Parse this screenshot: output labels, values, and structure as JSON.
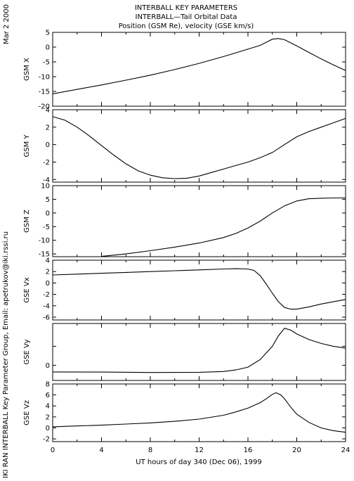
{
  "header": {
    "date": "Mar  2 2000",
    "title_lines": [
      "INTERBALL KEY PARAMETERS",
      "INTERBALL—Tail Orbital Data",
      "Position (GSM Re), velocity (GSE km/s)"
    ],
    "side_label": "IKI RAN INTERBALL Key Parameter Group, Email: apetrukov@iki.rssi.ru"
  },
  "chart_data": [
    {
      "type": "line",
      "ylabel": "GSM X",
      "xlim": [
        0,
        24
      ],
      "ylim": [
        -20,
        5
      ],
      "yticks": [
        5,
        0,
        -5,
        -10,
        -15,
        -20
      ],
      "x": [
        0,
        2,
        4,
        6,
        8,
        10,
        12,
        14,
        16,
        17,
        18,
        18.5,
        19,
        20,
        21,
        22,
        23,
        24
      ],
      "y": [
        -15.8,
        -14.3,
        -12.8,
        -11.2,
        -9.5,
        -7.6,
        -5.5,
        -3.2,
        -0.7,
        0.6,
        2.7,
        2.9,
        2.5,
        0.4,
        -1.8,
        -4.0,
        -6.0,
        -7.9
      ]
    },
    {
      "type": "line",
      "ylabel": "GSM Y",
      "xlim": [
        0,
        24
      ],
      "ylim": [
        -4.3,
        4
      ],
      "yticks": [
        4,
        2,
        0,
        -2,
        -4
      ],
      "x": [
        0,
        1,
        2,
        3,
        4,
        5,
        6,
        7,
        8,
        9,
        10,
        11,
        12,
        13,
        14,
        15,
        16,
        17,
        18,
        19,
        20,
        21,
        22,
        23,
        24
      ],
      "y": [
        3.2,
        2.8,
        2.0,
        1.0,
        -0.1,
        -1.2,
        -2.2,
        -3.0,
        -3.5,
        -3.8,
        -3.9,
        -3.85,
        -3.6,
        -3.2,
        -2.8,
        -2.4,
        -2.0,
        -1.5,
        -0.9,
        0.0,
        0.9,
        1.5,
        2.0,
        2.5,
        3.0
      ]
    },
    {
      "type": "line",
      "ylabel": "GSM Z",
      "xlim": [
        0,
        24
      ],
      "ylim": [
        -16,
        10
      ],
      "yticks": [
        10,
        5,
        0,
        -5,
        -10,
        -15
      ],
      "x": [
        4,
        6,
        8,
        10,
        12,
        14,
        15,
        16,
        17,
        18,
        19,
        20,
        21,
        22,
        23,
        24
      ],
      "y": [
        -15.9,
        -15.0,
        -13.8,
        -12.5,
        -11.0,
        -9.0,
        -7.5,
        -5.5,
        -3.0,
        0.0,
        2.6,
        4.4,
        5.2,
        5.4,
        5.5,
        5.5
      ]
    },
    {
      "type": "line",
      "ylabel": "GSE Vx",
      "xlim": [
        0,
        24
      ],
      "ylim": [
        -6.5,
        4
      ],
      "yticks": [
        4,
        2,
        0,
        -2,
        -4,
        -6
      ],
      "x": [
        0,
        2,
        4,
        6,
        8,
        10,
        12,
        14,
        15,
        16,
        16.5,
        17,
        17.5,
        18,
        18.5,
        19,
        19.5,
        20,
        21,
        22,
        23,
        24
      ],
      "y": [
        1.4,
        1.55,
        1.7,
        1.85,
        2.0,
        2.15,
        2.3,
        2.45,
        2.5,
        2.45,
        2.2,
        1.3,
        -0.2,
        -1.8,
        -3.3,
        -4.3,
        -4.6,
        -4.6,
        -4.2,
        -3.7,
        -3.3,
        -2.9
      ]
    },
    {
      "type": "line",
      "ylabel": "GSE Vy",
      "xlim": [
        0,
        24
      ],
      "ylim": [
        -0.8,
        2.2
      ],
      "yticks": [
        1,
        0
      ],
      "yticklabels": [
        "",
        "0"
      ],
      "x": [
        0,
        4,
        8,
        12,
        14,
        15,
        16,
        17,
        18,
        18.5,
        19,
        19.5,
        20,
        21,
        22,
        23,
        24
      ],
      "y": [
        -0.35,
        -0.36,
        -0.38,
        -0.37,
        -0.33,
        -0.25,
        -0.1,
        0.3,
        1.0,
        1.55,
        1.95,
        1.85,
        1.65,
        1.35,
        1.15,
        1.0,
        0.9
      ]
    },
    {
      "type": "line",
      "ylabel": "GSE Vz",
      "xlim": [
        0,
        24
      ],
      "ylim": [
        -2.5,
        8
      ],
      "yticks": [
        8,
        6,
        4,
        2,
        0,
        -2
      ],
      "x": [
        0,
        2,
        4,
        6,
        8,
        10,
        12,
        14,
        15,
        16,
        17,
        17.5,
        18,
        18.3,
        18.7,
        19,
        19.5,
        20,
        21,
        22,
        23,
        24
      ],
      "y": [
        0.2,
        0.35,
        0.5,
        0.7,
        0.9,
        1.2,
        1.6,
        2.3,
        2.9,
        3.6,
        4.6,
        5.3,
        6.1,
        6.4,
        6.0,
        5.3,
        3.8,
        2.5,
        1.0,
        0.0,
        -0.5,
        -0.8
      ]
    }
  ],
  "xaxis": {
    "label": "UT hours of day 340 (Dec 06), 1999",
    "ticks": [
      0,
      4,
      8,
      12,
      16,
      20,
      24
    ]
  }
}
